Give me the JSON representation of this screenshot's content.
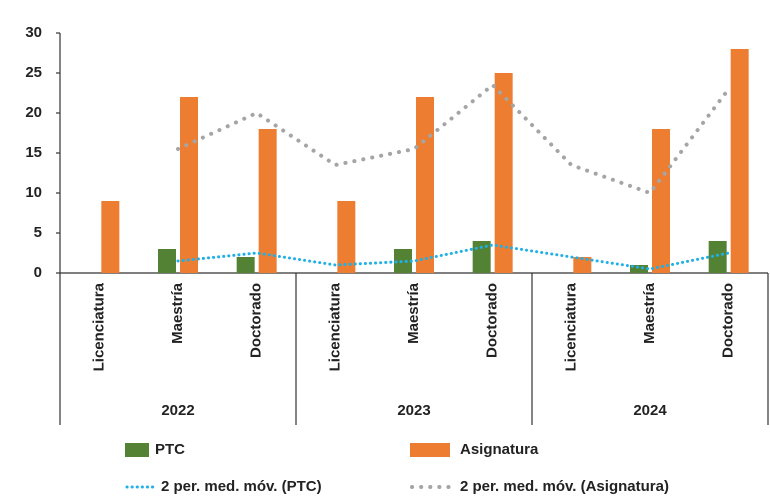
{
  "chart_data": {
    "type": "bar",
    "categories": [
      "Licenciatura",
      "Maestría",
      "Doctorado",
      "Licenciatura",
      "Maestría",
      "Doctorado",
      "Licenciatura",
      "Maestría",
      "Doctorado"
    ],
    "groups": [
      "2022",
      "2023",
      "2024"
    ],
    "series": [
      {
        "name": "PTC",
        "color": "#548235",
        "type": "bar",
        "values": [
          0,
          3,
          2,
          0,
          3,
          4,
          0,
          1,
          4
        ]
      },
      {
        "name": "Asignatura",
        "color": "#ed7d31",
        "type": "bar",
        "values": [
          9,
          22,
          18,
          9,
          22,
          25,
          2,
          18,
          28
        ]
      },
      {
        "name": "2 per. med. móv. (PTC)",
        "color": "#1fb0e8",
        "type": "line",
        "style": "dotted",
        "values": [
          null,
          1.5,
          2.5,
          1,
          1.5,
          3.5,
          2,
          0.5,
          2.5
        ]
      },
      {
        "name": "2 per. med. móv. (Asignatura)",
        "color": "#a5a5a5",
        "type": "line",
        "style": "dotted",
        "values": [
          null,
          15.5,
          20,
          13.5,
          15.5,
          23.5,
          13.5,
          10,
          23
        ]
      }
    ],
    "ylim": [
      0,
      30
    ],
    "yticks": [
      0,
      5,
      10,
      15,
      20,
      25,
      30
    ],
    "grid": false
  }
}
